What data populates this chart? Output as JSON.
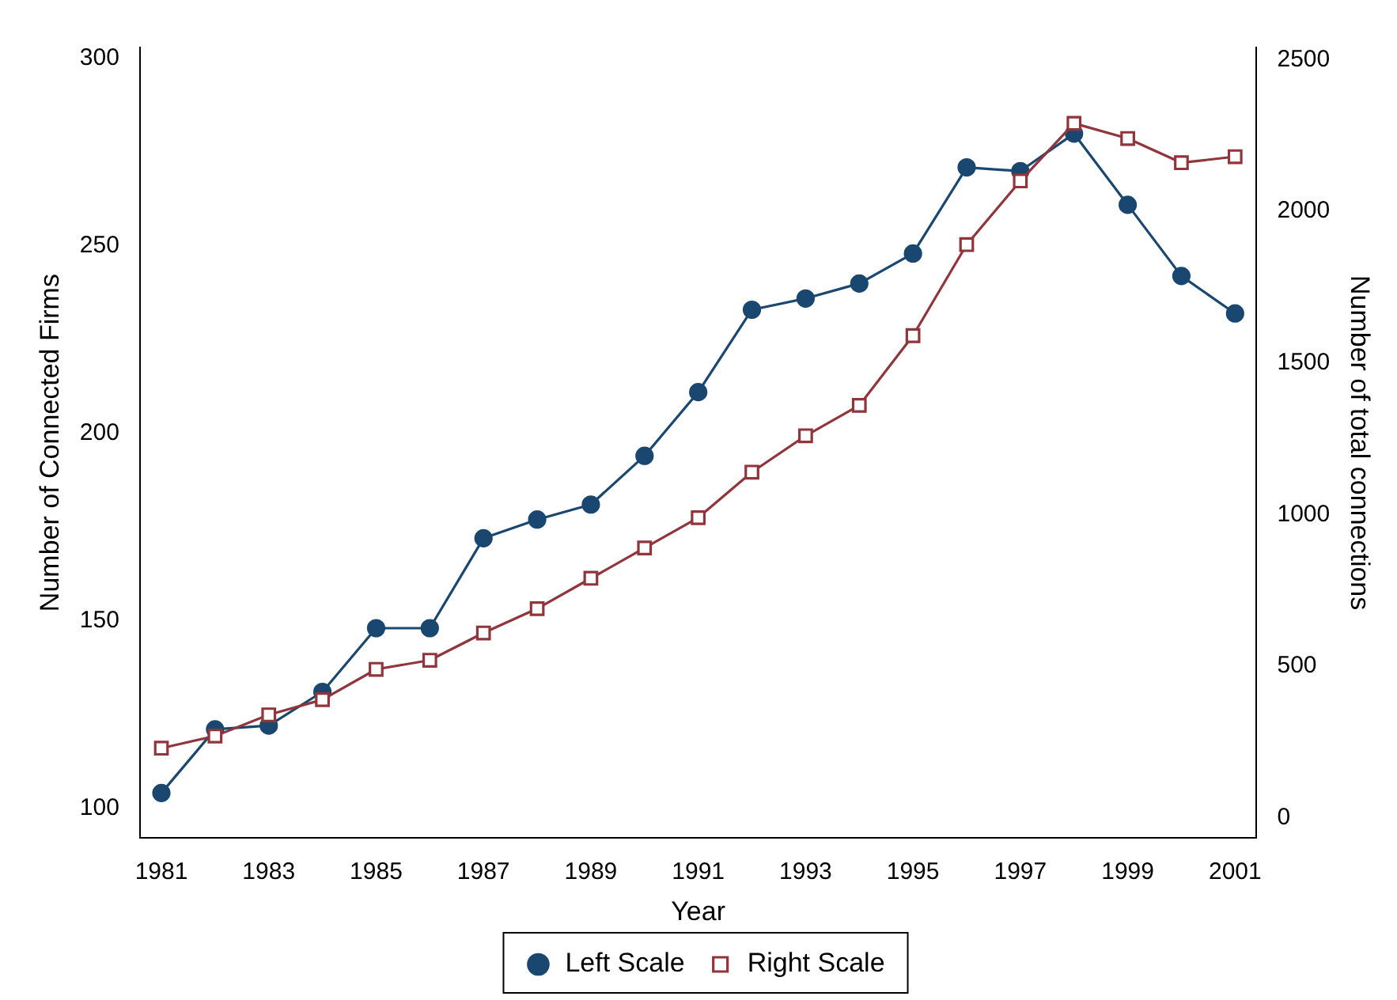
{
  "chart_data": {
    "type": "line",
    "xlabel": "Year",
    "ylabel": "Number of Connected Firms",
    "y2label": "Number of total connections",
    "x": [
      1981,
      1982,
      1983,
      1984,
      1985,
      1986,
      1987,
      1988,
      1989,
      1990,
      1991,
      1992,
      1993,
      1994,
      1995,
      1996,
      1997,
      1998,
      1999,
      2000,
      2001
    ],
    "xlim": [
      1980.6,
      2001.4
    ],
    "xticks": [
      1981,
      1983,
      1985,
      1987,
      1989,
      1991,
      1993,
      1995,
      1997,
      1999,
      2001
    ],
    "ylim": [
      92,
      303
    ],
    "yticks": [
      100,
      150,
      200,
      250,
      300
    ],
    "y2lim": [
      -66,
      2540
    ],
    "y2ticks": [
      0,
      500,
      1000,
      1500,
      2000,
      2500
    ],
    "series": [
      {
        "name": "Left Scale",
        "color": "#1a476f",
        "marker": "circle",
        "values": [
          104,
          121,
          122,
          131,
          148,
          148,
          172,
          177,
          181,
          194,
          211,
          233,
          236,
          240,
          248,
          271,
          270,
          280,
          261,
          242,
          232
        ]
      },
      {
        "name": "Right Scale",
        "color": "#90353b",
        "marker": "square",
        "axis": "y2",
        "values": [
          230,
          270,
          340,
          390,
          490,
          520,
          610,
          690,
          790,
          890,
          990,
          1140,
          1260,
          1360,
          1590,
          1890,
          2100,
          2290,
          2240,
          2160,
          2180
        ]
      }
    ],
    "grid": false,
    "legend": "bottom"
  }
}
